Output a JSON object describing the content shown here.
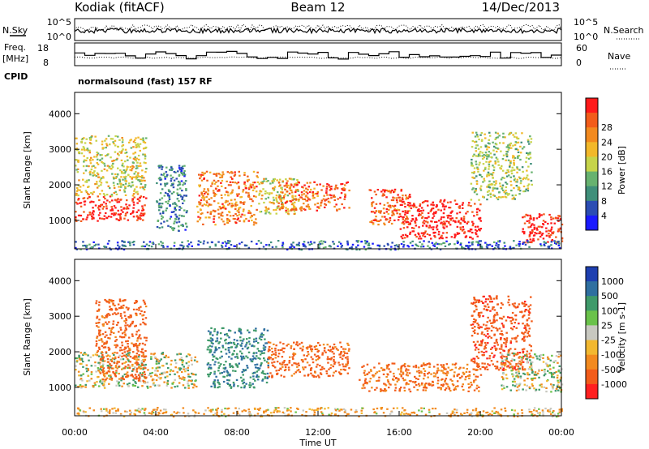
{
  "header": {
    "station": "Kodiak (fitACF)",
    "beam": "Beam 12",
    "date": "14/Dec/2013"
  },
  "strip_panels": {
    "noise": {
      "left_label": "N.Sky",
      "right_label": "N.Search",
      "left_ticks": [
        "10^5",
        "10^0"
      ],
      "right_ticks": [
        "10^5",
        "10^0"
      ]
    },
    "freq": {
      "left_label_1": "Freq.",
      "left_label_2": "[MHz]",
      "right_label": "Nave",
      "left_ticks": [
        "18",
        "8"
      ],
      "right_ticks": [
        "60",
        "0"
      ]
    },
    "cpid": {
      "label": "CPID",
      "text": "normalsound (fast) 157 RF"
    }
  },
  "chart_data": [
    {
      "type": "heatmap",
      "name": "power",
      "ylabel": "Slant Range [km]",
      "xlabel": "",
      "ylim": [
        200,
        4600
      ],
      "y_ticks": [
        "1000",
        "2000",
        "3000",
        "4000"
      ],
      "colorbar": {
        "label": "Power [dB]",
        "ticks": [
          "4",
          "8",
          "12",
          "16",
          "20",
          "24",
          "28"
        ],
        "colors": [
          "#1a1aff",
          "#2b4db3",
          "#3f8f7a",
          "#67b26f",
          "#c6d44a",
          "#f2b82a",
          "#f28a1f",
          "#f25c1a",
          "#ff1a1a"
        ]
      },
      "echo_regions": [
        {
          "start": "00:00",
          "end": "03:30",
          "range_km": [
            1000,
            1700
          ],
          "value": 28
        },
        {
          "start": "00:00",
          "end": "03:30",
          "range_km": [
            1700,
            3400
          ],
          "value": 16
        },
        {
          "start": "04:00",
          "end": "05:30",
          "range_km": [
            700,
            2600
          ],
          "value": 8
        },
        {
          "start": "06:00",
          "end": "09:00",
          "range_km": [
            900,
            2400
          ],
          "value": 22
        },
        {
          "start": "09:00",
          "end": "11:00",
          "range_km": [
            1200,
            2200
          ],
          "value": 16
        },
        {
          "start": "10:00",
          "end": "13:30",
          "range_km": [
            1300,
            2100
          ],
          "value": 24
        },
        {
          "start": "14:30",
          "end": "16:30",
          "range_km": [
            900,
            1900
          ],
          "value": 24
        },
        {
          "start": "16:00",
          "end": "20:00",
          "range_km": [
            500,
            1600
          ],
          "value": 28
        },
        {
          "start": "19:30",
          "end": "22:30",
          "range_km": [
            1600,
            3500
          ],
          "value": 14
        },
        {
          "start": "22:00",
          "end": "24:00",
          "range_km": [
            400,
            1200
          ],
          "value": 28
        },
        {
          "start": "00:00",
          "end": "24:00",
          "range_km": [
            200,
            450
          ],
          "value": 6
        }
      ]
    },
    {
      "type": "heatmap",
      "name": "velocity",
      "ylabel": "Slant Range [km]",
      "xlabel": "Time UT",
      "x_ticks": [
        "00:00",
        "04:00",
        "08:00",
        "12:00",
        "16:00",
        "20:00",
        "00:00"
      ],
      "ylim": [
        200,
        4600
      ],
      "y_ticks": [
        "1000",
        "2000",
        "3000",
        "4000"
      ],
      "colorbar": {
        "label": "Velocity [m s-1]",
        "ticks": [
          "1000",
          "500",
          "100",
          "25",
          "-25",
          "-100",
          "-500",
          "-1000"
        ],
        "colors": [
          "#1e3fb0",
          "#2f6fa0",
          "#3f9a6a",
          "#6ac24a",
          "#c8c8c0",
          "#f2b830",
          "#f28a1f",
          "#f25c1a",
          "#ff2020"
        ]
      },
      "echo_regions": [
        {
          "start": "00:00",
          "end": "06:00",
          "range_km": [
            1000,
            2000
          ],
          "value": 0
        },
        {
          "start": "01:00",
          "end": "03:30",
          "range_km": [
            1200,
            3500
          ],
          "value": -400
        },
        {
          "start": "06:30",
          "end": "09:30",
          "range_km": [
            1000,
            2700
          ],
          "value": 300
        },
        {
          "start": "09:30",
          "end": "13:30",
          "range_km": [
            1300,
            2300
          ],
          "value": -400
        },
        {
          "start": "14:00",
          "end": "20:00",
          "range_km": [
            900,
            1700
          ],
          "value": -300
        },
        {
          "start": "19:30",
          "end": "22:30",
          "range_km": [
            1500,
            3600
          ],
          "value": -700
        },
        {
          "start": "21:00",
          "end": "24:00",
          "range_km": [
            900,
            2000
          ],
          "value": 0
        },
        {
          "start": "00:00",
          "end": "24:00",
          "range_km": [
            200,
            450
          ],
          "value": -100
        }
      ]
    }
  ]
}
